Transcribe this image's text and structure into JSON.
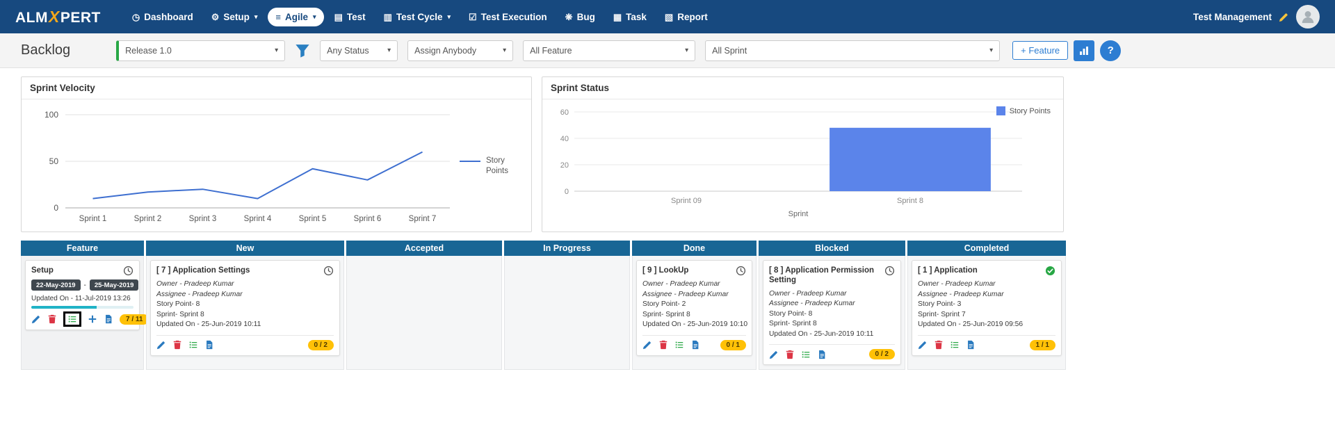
{
  "colors": {
    "navbar_blue": "#17497f",
    "column_header_blue": "#186695",
    "accent_blue": "#2d7dd2",
    "success_green": "#28a745",
    "danger_red": "#dc3545",
    "badge_gold": "#ffc107",
    "progress_teal": "#20b3c6"
  },
  "icons": {
    "caret": "▾",
    "dashboard": "◷",
    "setup": "⚙",
    "agile": "≡",
    "test": "▤",
    "test_cycle": "▥",
    "test_execution": "☑",
    "bug": "❋",
    "task": "▦",
    "report": "▧"
  },
  "navbar": {
    "logo_alm": "ALM",
    "logo_x": "X",
    "logo_pert": "PERT",
    "items": [
      {
        "label": "Dashboard"
      },
      {
        "label": "Setup"
      },
      {
        "label": "Agile"
      },
      {
        "label": "Test"
      },
      {
        "label": "Test Cycle"
      },
      {
        "label": "Test Execution"
      },
      {
        "label": "Bug"
      },
      {
        "label": "Task"
      },
      {
        "label": "Report"
      }
    ],
    "user_label": "Test Management"
  },
  "filters": {
    "page_title": "Backlog",
    "release": "Release 1.0",
    "status": "Any Status",
    "assignee": "Assign Anybody",
    "feature": "All Feature",
    "sprint": "All Sprint",
    "add_feature": "+ Feature",
    "help": "?"
  },
  "chart_data": [
    {
      "type": "line",
      "title": "Sprint Velocity",
      "categories": [
        "Sprint 1",
        "Sprint 2",
        "Sprint 3",
        "Sprint 4",
        "Sprint 5",
        "Sprint 6",
        "Sprint 7"
      ],
      "series": [
        {
          "name": "Story Points",
          "values": [
            10,
            17,
            20,
            10,
            42,
            30,
            60
          ]
        }
      ],
      "ylim": [
        0,
        100
      ],
      "yticks": [
        0,
        50,
        100
      ],
      "legend_position": "right",
      "line_color": "#3e6fd0",
      "grid": true
    },
    {
      "type": "bar",
      "title": "Sprint Status",
      "categories": [
        "Sprint 09",
        "Sprint 8"
      ],
      "series": [
        {
          "name": "Story Points",
          "values": [
            0,
            48
          ]
        }
      ],
      "xlabel": "Sprint",
      "ylim": [
        0,
        60
      ],
      "yticks": [
        0,
        20,
        40,
        60
      ],
      "legend_position": "top-right",
      "bar_color": "#5b84ea",
      "grid": true
    }
  ],
  "board": {
    "columns": [
      {
        "title": "Feature"
      },
      {
        "title": "New"
      },
      {
        "title": "Accepted"
      },
      {
        "title": "In Progress"
      },
      {
        "title": "Done"
      },
      {
        "title": "Blocked"
      },
      {
        "title": "Completed"
      }
    ],
    "feature_card": {
      "title": "Setup",
      "start_date": "22-May-2019",
      "date_separator": "-",
      "end_date": "25-May-2019",
      "updated": "Updated On - 11-Jul-2019 13:26",
      "progress_pct": 64,
      "count": "7 / 11"
    },
    "cards": {
      "new": {
        "title": "[ 7 ] Application Settings",
        "owner": "Owner - Pradeep Kumar",
        "assignee": "Assignee - Pradeep Kumar",
        "story_point": "Story Point- 8",
        "sprint": "Sprint- Sprint 8",
        "updated": "Updated On - 25-Jun-2019 10:11",
        "count": "0 / 2"
      },
      "done": {
        "title": "[ 9 ] LookUp",
        "owner": "Owner - Pradeep Kumar",
        "assignee": "Assignee - Pradeep Kumar",
        "story_point": "Story Point- 2",
        "sprint": "Sprint- Sprint 8",
        "updated": "Updated On - 25-Jun-2019 10:10",
        "count": "0 / 1"
      },
      "blocked": {
        "title": "[ 8 ] Application Permission Setting",
        "owner": "Owner - Pradeep Kumar",
        "assignee": "Assignee - Pradeep Kumar",
        "story_point": "Story Point- 8",
        "sprint": "Sprint- Sprint 8",
        "updated": "Updated On - 25-Jun-2019 10:11",
        "count": "0 / 2"
      },
      "completed": {
        "title": "[ 1 ] Application",
        "owner": "Owner - Pradeep Kumar",
        "assignee": "Assignee - Pradeep Kumar",
        "story_point": "Story Point- 3",
        "sprint": "Sprint- Sprint 7",
        "updated": "Updated On - 25-Jun-2019 09:56",
        "count": "1 / 1"
      }
    }
  }
}
